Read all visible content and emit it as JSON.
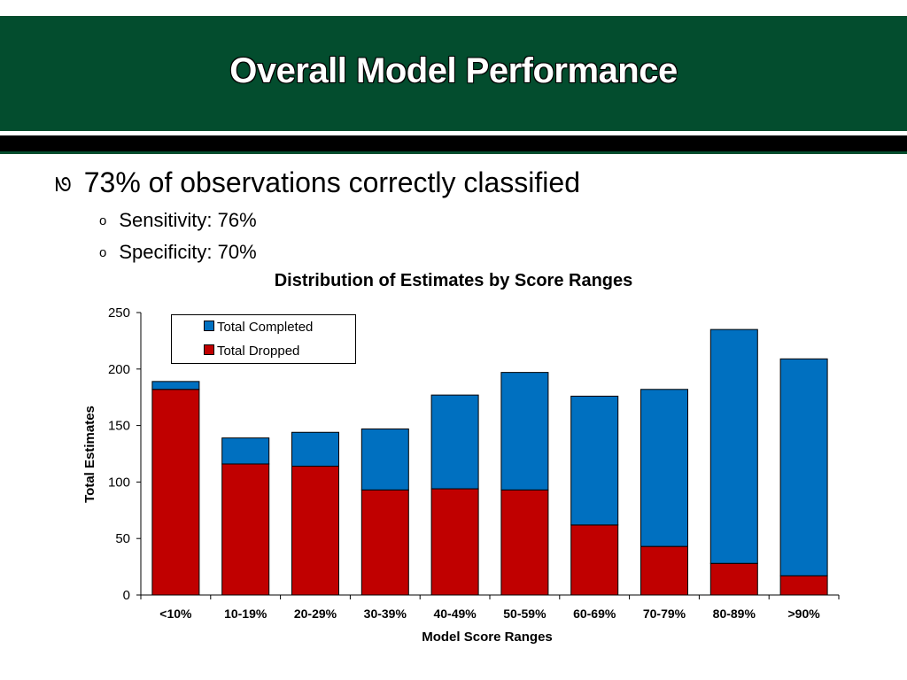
{
  "slide": {
    "title": "Overall Model Performance",
    "bullets": {
      "main": "73% of observations correctly classified",
      "sub": [
        "Sensitivity:  76%",
        "Specificity: 70%"
      ]
    },
    "bullet_glyphs": {
      "main": "ᘚ",
      "sub": "o"
    }
  },
  "colors": {
    "header_green": "#034d2e",
    "completed": "#0070c0",
    "dropped": "#c00000"
  },
  "chart_data": {
    "type": "bar",
    "stacked": true,
    "title": "Distribution of Estimates by Score Ranges",
    "xlabel": "Model Score Ranges",
    "ylabel": "Total Estimates",
    "ylim": [
      0,
      250
    ],
    "yticks": [
      0,
      50,
      100,
      150,
      200,
      250
    ],
    "grid": false,
    "legend_position": "top-left",
    "categories": [
      "<10%",
      "10-19%",
      "20-29%",
      "30-39%",
      "40-49%",
      "50-59%",
      "60-69%",
      "70-79%",
      "80-89%",
      ">90%"
    ],
    "series": [
      {
        "name": "Total Dropped",
        "color": "#c00000",
        "values": [
          182,
          116,
          114,
          93,
          94,
          93,
          62,
          43,
          28,
          17
        ]
      },
      {
        "name": "Total Completed",
        "color": "#0070c0",
        "values": [
          7,
          23,
          30,
          54,
          83,
          104,
          114,
          139,
          207,
          192
        ]
      }
    ],
    "legend": [
      "Total Completed",
      "Total Dropped"
    ]
  }
}
